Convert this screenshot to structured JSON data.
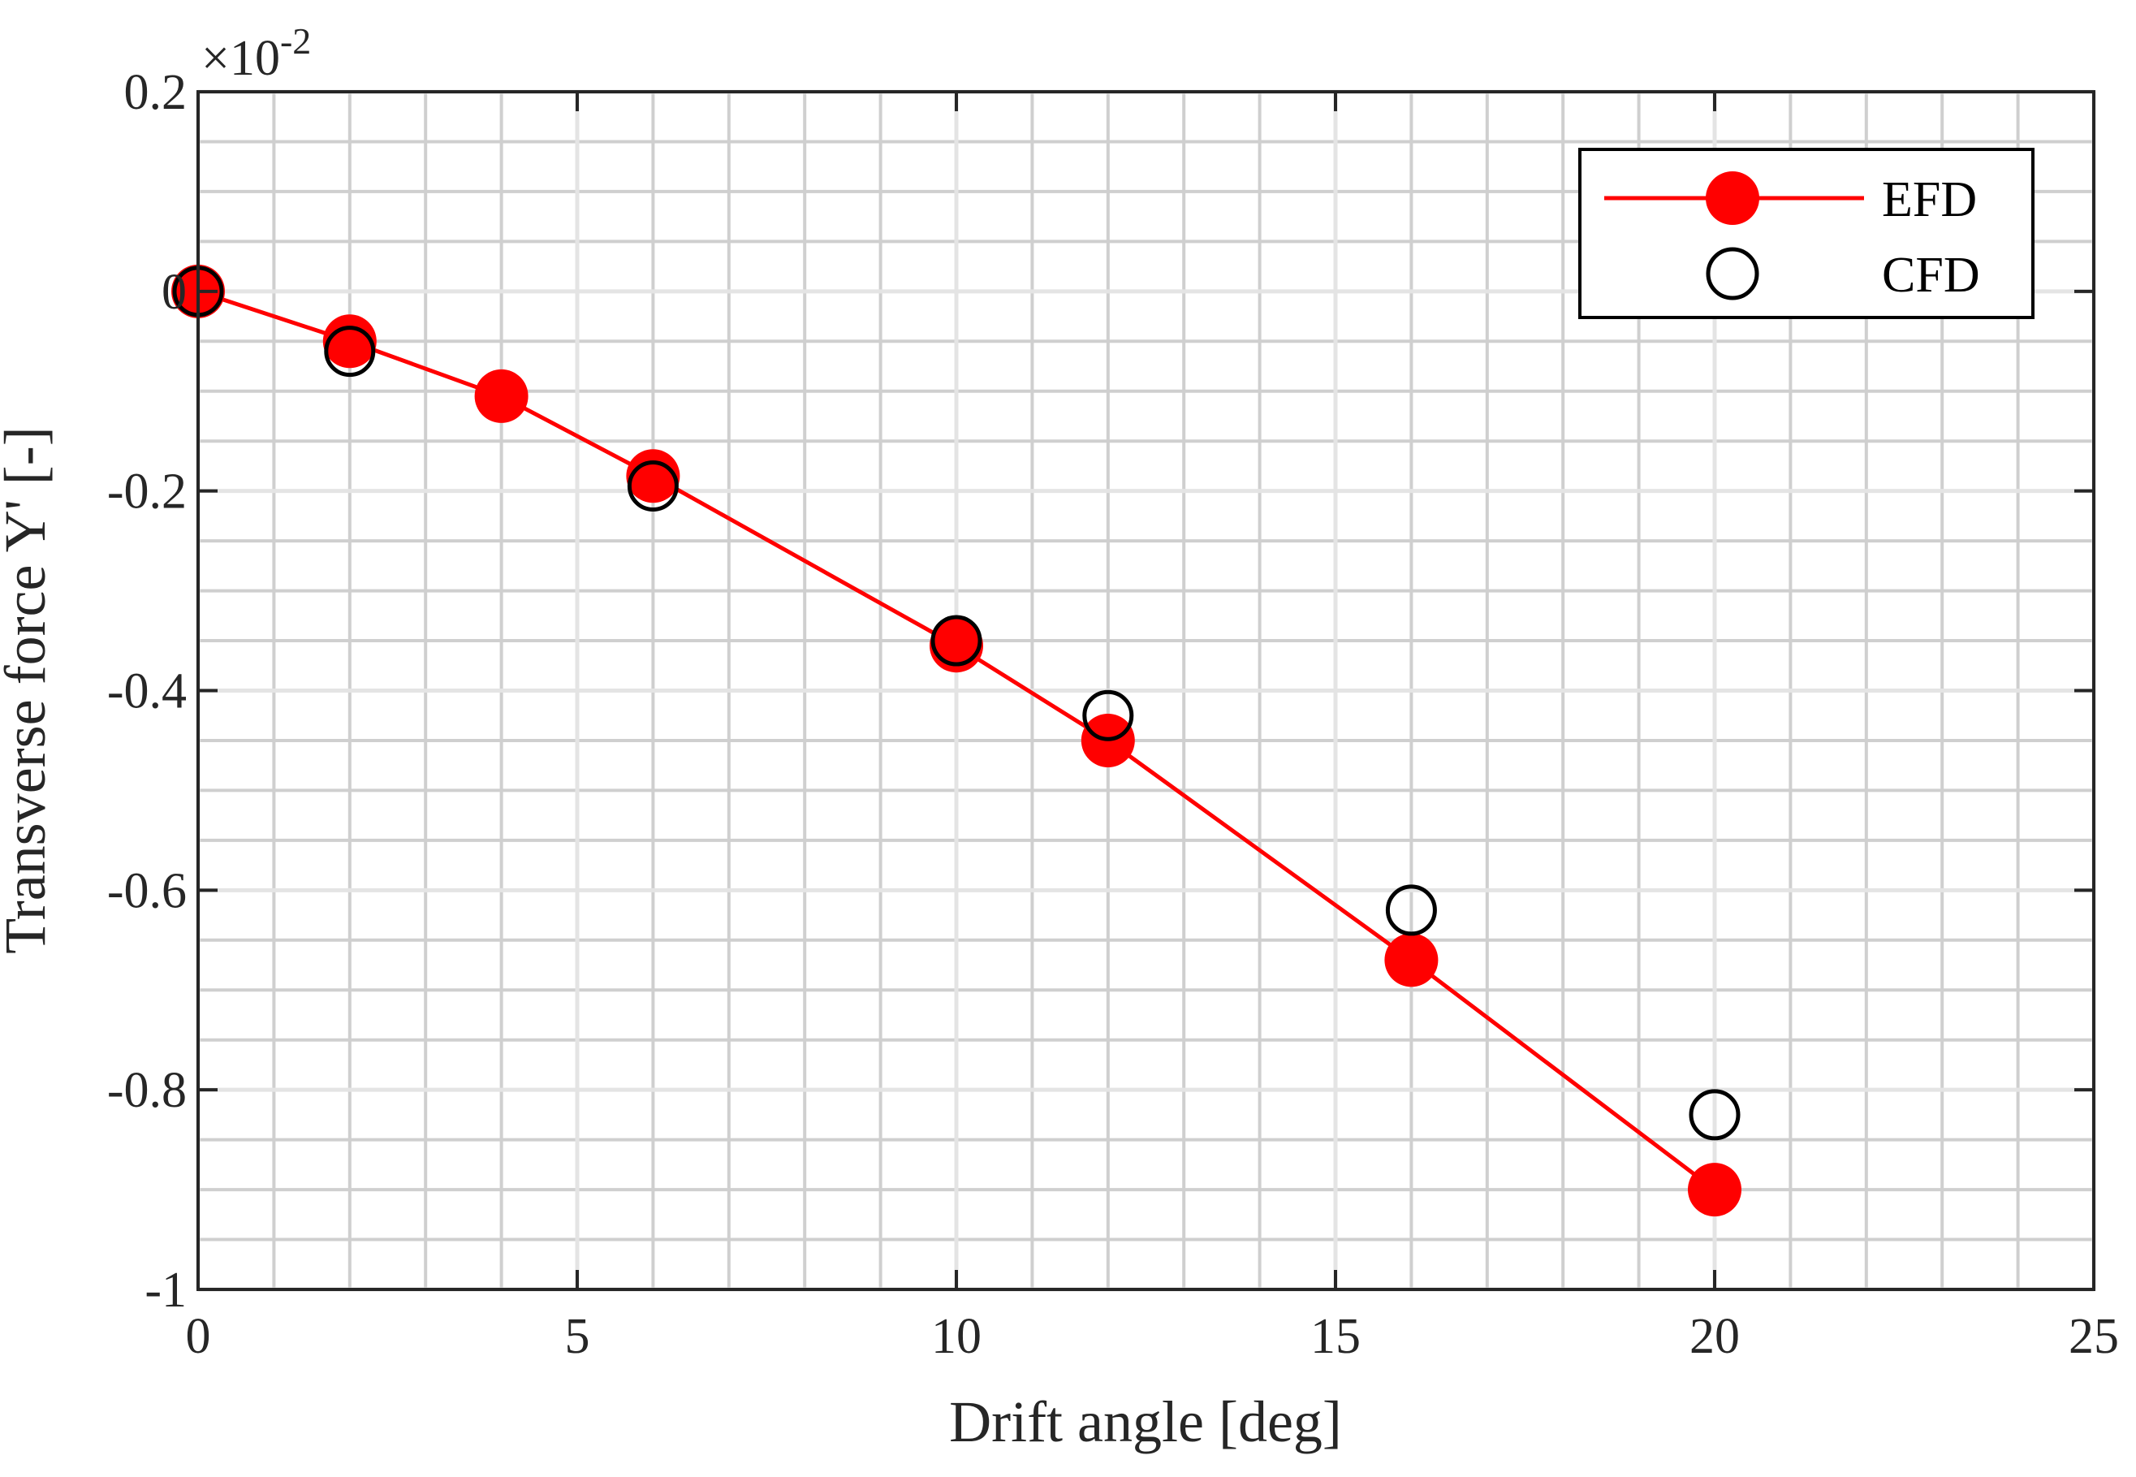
{
  "chart_data": {
    "type": "line",
    "title": "",
    "xlabel": "Drift angle [deg]",
    "ylabel": "Transverse force Y' [-]",
    "y_exponent": {
      "times": "×10",
      "power": "-2"
    },
    "xlim": [
      0,
      25
    ],
    "ylim": [
      -1,
      0.2
    ],
    "x_ticks": [
      0,
      5,
      10,
      15,
      20,
      25
    ],
    "x_tick_labels": [
      "0",
      "5",
      "10",
      "15",
      "20",
      "25"
    ],
    "y_ticks": [
      -1,
      -0.8,
      -0.6,
      -0.4,
      -0.2,
      0,
      0.2
    ],
    "y_tick_labels": [
      "-1",
      "-0.8",
      "-0.6",
      "-0.4",
      "-0.2",
      "0",
      "0.2"
    ],
    "grid": true,
    "minor_grid": true,
    "legend_position": "top-right",
    "series": [
      {
        "name": "EFD",
        "style": "line-with-filled-markers",
        "color": "#ff0000",
        "x": [
          0,
          2,
          4,
          6,
          10,
          12,
          16,
          20
        ],
        "y": [
          0,
          -0.05,
          -0.105,
          -0.185,
          -0.355,
          -0.45,
          -0.67,
          -0.9
        ]
      },
      {
        "name": "CFD",
        "style": "open-markers",
        "color": "#000000",
        "x": [
          0,
          2,
          6,
          10,
          12,
          16,
          20
        ],
        "y": [
          0,
          -0.06,
          -0.195,
          -0.35,
          -0.425,
          -0.62,
          -0.825
        ]
      }
    ]
  }
}
